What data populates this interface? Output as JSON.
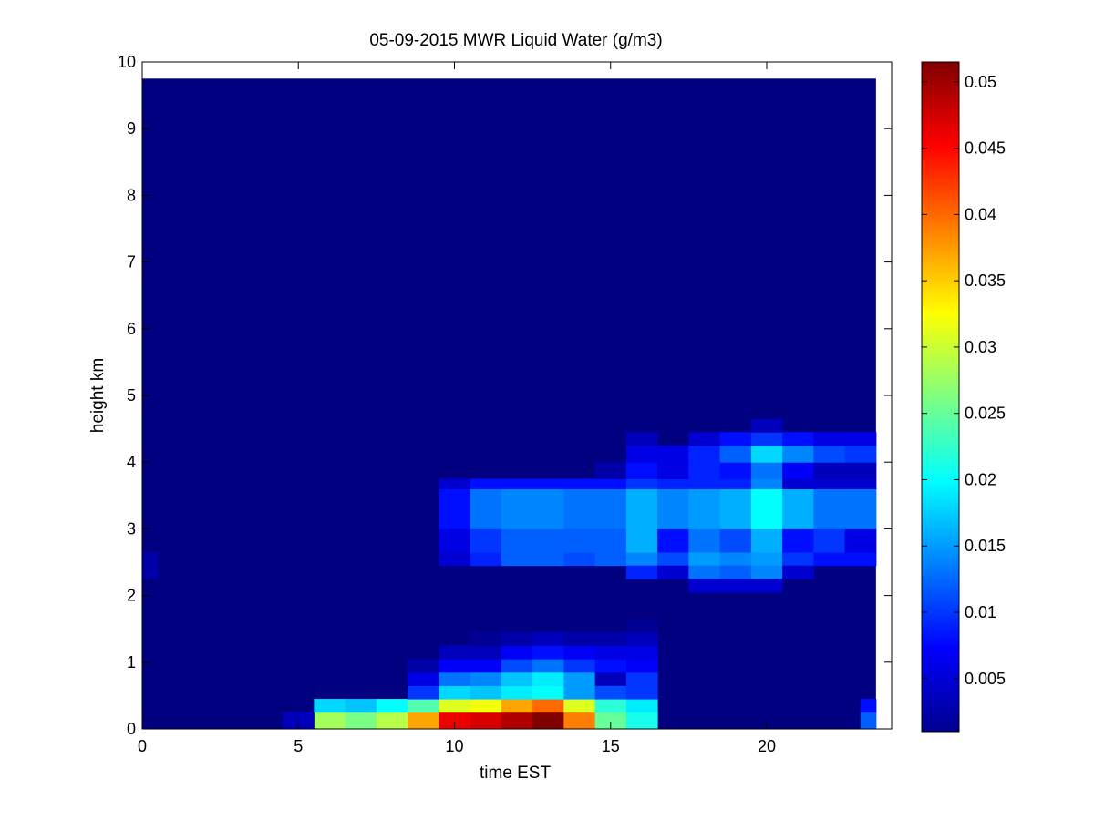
{
  "chart_data": {
    "type": "heatmap",
    "title": "05-09-2015 MWR Liquid Water (g/m3)",
    "xlabel": "time EST",
    "ylabel": "height km",
    "xlim": [
      0,
      24
    ],
    "ylim": [
      0,
      10
    ],
    "x_ticks": [
      "0",
      "5",
      "10",
      "15",
      "20"
    ],
    "y_ticks": [
      "0",
      "1",
      "2",
      "3",
      "4",
      "5",
      "6",
      "7",
      "8",
      "9",
      "10"
    ],
    "colorbar": {
      "colormap": "jet",
      "range": [
        0.001,
        0.0515
      ],
      "ticks": [
        "0.005",
        "0.01",
        "0.015",
        "0.02",
        "0.025",
        "0.03",
        "0.035",
        "0.04",
        "0.045",
        "0.05"
      ]
    },
    "background_value": 0.001,
    "data_extent": {
      "x": [
        0,
        23.5
      ],
      "y": [
        0,
        9.75
      ]
    },
    "cells": [
      {
        "x0": 5.5,
        "x1": 6.5,
        "y0": 0.0,
        "y1": 0.25,
        "v": 0.028
      },
      {
        "x0": 6.5,
        "x1": 7.5,
        "y0": 0.0,
        "y1": 0.25,
        "v": 0.026
      },
      {
        "x0": 7.5,
        "x1": 8.5,
        "y0": 0.0,
        "y1": 0.25,
        "v": 0.029
      },
      {
        "x0": 8.5,
        "x1": 9.5,
        "y0": 0.0,
        "y1": 0.25,
        "v": 0.037
      },
      {
        "x0": 9.5,
        "x1": 10.5,
        "y0": 0.0,
        "y1": 0.25,
        "v": 0.046
      },
      {
        "x0": 10.5,
        "x1": 11.5,
        "y0": 0.0,
        "y1": 0.25,
        "v": 0.047
      },
      {
        "x0": 11.5,
        "x1": 12.5,
        "y0": 0.0,
        "y1": 0.25,
        "v": 0.049
      },
      {
        "x0": 12.5,
        "x1": 13.5,
        "y0": 0.0,
        "y1": 0.25,
        "v": 0.0515
      },
      {
        "x0": 13.5,
        "x1": 14.5,
        "y0": 0.0,
        "y1": 0.25,
        "v": 0.039
      },
      {
        "x0": 14.5,
        "x1": 15.5,
        "y0": 0.0,
        "y1": 0.25,
        "v": 0.025
      },
      {
        "x0": 15.5,
        "x1": 16.5,
        "y0": 0.0,
        "y1": 0.25,
        "v": 0.021
      },
      {
        "x0": 4.5,
        "x1": 5.5,
        "y0": 0.0,
        "y1": 0.25,
        "v": 0.004
      },
      {
        "x0": 23.0,
        "x1": 23.5,
        "y0": 0.0,
        "y1": 0.25,
        "v": 0.012
      },
      {
        "x0": 5.5,
        "x1": 6.5,
        "y0": 0.25,
        "y1": 0.45,
        "v": 0.018
      },
      {
        "x0": 6.5,
        "x1": 7.5,
        "y0": 0.25,
        "y1": 0.45,
        "v": 0.017
      },
      {
        "x0": 7.5,
        "x1": 8.5,
        "y0": 0.25,
        "y1": 0.45,
        "v": 0.02
      },
      {
        "x0": 8.5,
        "x1": 9.5,
        "y0": 0.25,
        "y1": 0.45,
        "v": 0.024
      },
      {
        "x0": 9.5,
        "x1": 10.5,
        "y0": 0.25,
        "y1": 0.45,
        "v": 0.031
      },
      {
        "x0": 10.5,
        "x1": 11.5,
        "y0": 0.25,
        "y1": 0.45,
        "v": 0.032
      },
      {
        "x0": 11.5,
        "x1": 12.5,
        "y0": 0.25,
        "y1": 0.45,
        "v": 0.037
      },
      {
        "x0": 12.5,
        "x1": 13.5,
        "y0": 0.25,
        "y1": 0.45,
        "v": 0.04
      },
      {
        "x0": 13.5,
        "x1": 14.5,
        "y0": 0.25,
        "y1": 0.45,
        "v": 0.031
      },
      {
        "x0": 14.5,
        "x1": 15.5,
        "y0": 0.25,
        "y1": 0.45,
        "v": 0.022
      },
      {
        "x0": 15.5,
        "x1": 16.5,
        "y0": 0.25,
        "y1": 0.45,
        "v": 0.019
      },
      {
        "x0": 23.0,
        "x1": 23.5,
        "y0": 0.25,
        "y1": 0.45,
        "v": 0.008
      },
      {
        "x0": 8.5,
        "x1": 9.5,
        "y0": 0.45,
        "y1": 0.65,
        "v": 0.01
      },
      {
        "x0": 9.5,
        "x1": 10.5,
        "y0": 0.45,
        "y1": 0.65,
        "v": 0.018
      },
      {
        "x0": 10.5,
        "x1": 11.5,
        "y0": 0.45,
        "y1": 0.65,
        "v": 0.017
      },
      {
        "x0": 11.5,
        "x1": 12.5,
        "y0": 0.45,
        "y1": 0.65,
        "v": 0.019
      },
      {
        "x0": 12.5,
        "x1": 13.5,
        "y0": 0.45,
        "y1": 0.65,
        "v": 0.02
      },
      {
        "x0": 13.5,
        "x1": 14.5,
        "y0": 0.45,
        "y1": 0.65,
        "v": 0.015
      },
      {
        "x0": 14.5,
        "x1": 15.5,
        "y0": 0.45,
        "y1": 0.65,
        "v": 0.011
      },
      {
        "x0": 15.5,
        "x1": 16.5,
        "y0": 0.45,
        "y1": 0.65,
        "v": 0.01
      },
      {
        "x0": 8.5,
        "x1": 9.5,
        "y0": 0.65,
        "y1": 0.85,
        "v": 0.006
      },
      {
        "x0": 9.5,
        "x1": 10.5,
        "y0": 0.65,
        "y1": 0.85,
        "v": 0.013
      },
      {
        "x0": 10.5,
        "x1": 11.5,
        "y0": 0.65,
        "y1": 0.85,
        "v": 0.014
      },
      {
        "x0": 11.5,
        "x1": 12.5,
        "y0": 0.65,
        "y1": 0.85,
        "v": 0.017
      },
      {
        "x0": 12.5,
        "x1": 13.5,
        "y0": 0.65,
        "y1": 0.85,
        "v": 0.019
      },
      {
        "x0": 13.5,
        "x1": 14.5,
        "y0": 0.65,
        "y1": 0.85,
        "v": 0.015
      },
      {
        "x0": 14.5,
        "x1": 15.5,
        "y0": 0.65,
        "y1": 0.85,
        "v": 0.004
      },
      {
        "x0": 15.5,
        "x1": 16.5,
        "y0": 0.65,
        "y1": 0.85,
        "v": 0.01
      },
      {
        "x0": 8.5,
        "x1": 9.5,
        "y0": 0.85,
        "y1": 1.05,
        "v": 0.003
      },
      {
        "x0": 9.5,
        "x1": 10.5,
        "y0": 0.85,
        "y1": 1.05,
        "v": 0.007
      },
      {
        "x0": 10.5,
        "x1": 11.5,
        "y0": 0.85,
        "y1": 1.05,
        "v": 0.007
      },
      {
        "x0": 11.5,
        "x1": 12.5,
        "y0": 0.85,
        "y1": 1.05,
        "v": 0.011
      },
      {
        "x0": 12.5,
        "x1": 13.5,
        "y0": 0.85,
        "y1": 1.05,
        "v": 0.013
      },
      {
        "x0": 13.5,
        "x1": 14.5,
        "y0": 0.85,
        "y1": 1.05,
        "v": 0.01
      },
      {
        "x0": 14.5,
        "x1": 15.5,
        "y0": 0.85,
        "y1": 1.05,
        "v": 0.008
      },
      {
        "x0": 15.5,
        "x1": 16.5,
        "y0": 0.85,
        "y1": 1.05,
        "v": 0.007
      },
      {
        "x0": 9.5,
        "x1": 10.5,
        "y0": 1.05,
        "y1": 1.25,
        "v": 0.004
      },
      {
        "x0": 10.5,
        "x1": 11.5,
        "y0": 1.05,
        "y1": 1.25,
        "v": 0.004
      },
      {
        "x0": 11.5,
        "x1": 12.5,
        "y0": 1.05,
        "y1": 1.25,
        "v": 0.007
      },
      {
        "x0": 12.5,
        "x1": 13.5,
        "y0": 1.05,
        "y1": 1.25,
        "v": 0.008
      },
      {
        "x0": 13.5,
        "x1": 14.5,
        "y0": 1.05,
        "y1": 1.25,
        "v": 0.007
      },
      {
        "x0": 14.5,
        "x1": 15.5,
        "y0": 1.05,
        "y1": 1.25,
        "v": 0.006
      },
      {
        "x0": 15.5,
        "x1": 16.5,
        "y0": 1.05,
        "y1": 1.25,
        "v": 0.006
      },
      {
        "x0": 10.5,
        "x1": 11.5,
        "y0": 1.25,
        "y1": 1.45,
        "v": 0.002
      },
      {
        "x0": 11.5,
        "x1": 12.5,
        "y0": 1.25,
        "y1": 1.45,
        "v": 0.003
      },
      {
        "x0": 12.5,
        "x1": 13.5,
        "y0": 1.25,
        "y1": 1.45,
        "v": 0.004
      },
      {
        "x0": 13.5,
        "x1": 14.5,
        "y0": 1.25,
        "y1": 1.45,
        "v": 0.003
      },
      {
        "x0": 14.5,
        "x1": 15.5,
        "y0": 1.25,
        "y1": 1.45,
        "v": 0.003
      },
      {
        "x0": 15.5,
        "x1": 16.5,
        "y0": 1.25,
        "y1": 1.45,
        "v": 0.004
      },
      {
        "x0": 15.5,
        "x1": 16.5,
        "y0": 1.45,
        "y1": 1.65,
        "v": 0.002
      },
      {
        "x0": 0.0,
        "x1": 0.5,
        "y0": 2.25,
        "y1": 2.65,
        "v": 0.003
      },
      {
        "x0": 9.5,
        "x1": 10.5,
        "y0": 2.45,
        "y1": 2.65,
        "v": 0.005
      },
      {
        "x0": 10.5,
        "x1": 11.5,
        "y0": 2.45,
        "y1": 2.65,
        "v": 0.009
      },
      {
        "x0": 11.5,
        "x1": 12.5,
        "y0": 2.45,
        "y1": 2.65,
        "v": 0.012
      },
      {
        "x0": 12.5,
        "x1": 13.5,
        "y0": 2.45,
        "y1": 2.65,
        "v": 0.012
      },
      {
        "x0": 13.5,
        "x1": 14.5,
        "y0": 2.45,
        "y1": 2.65,
        "v": 0.011
      },
      {
        "x0": 14.5,
        "x1": 15.5,
        "y0": 2.45,
        "y1": 2.65,
        "v": 0.012
      },
      {
        "x0": 15.5,
        "x1": 16.5,
        "y0": 2.45,
        "y1": 2.65,
        "v": 0.014
      },
      {
        "x0": 16.5,
        "x1": 17.5,
        "y0": 2.45,
        "y1": 2.65,
        "v": 0.011
      },
      {
        "x0": 17.5,
        "x1": 18.5,
        "y0": 2.45,
        "y1": 2.65,
        "v": 0.015
      },
      {
        "x0": 18.5,
        "x1": 19.5,
        "y0": 2.45,
        "y1": 2.65,
        "v": 0.014
      },
      {
        "x0": 19.5,
        "x1": 20.5,
        "y0": 2.45,
        "y1": 2.65,
        "v": 0.015
      },
      {
        "x0": 20.5,
        "x1": 21.5,
        "y0": 2.45,
        "y1": 2.65,
        "v": 0.01
      },
      {
        "x0": 21.5,
        "x1": 22.5,
        "y0": 2.45,
        "y1": 2.65,
        "v": 0.008
      },
      {
        "x0": 22.5,
        "x1": 23.5,
        "y0": 2.45,
        "y1": 2.65,
        "v": 0.008
      },
      {
        "x0": 15.5,
        "x1": 16.5,
        "y0": 2.25,
        "y1": 2.45,
        "v": 0.009
      },
      {
        "x0": 16.5,
        "x1": 17.5,
        "y0": 2.25,
        "y1": 2.45,
        "v": 0.005
      },
      {
        "x0": 17.5,
        "x1": 18.5,
        "y0": 2.25,
        "y1": 2.45,
        "v": 0.013
      },
      {
        "x0": 18.5,
        "x1": 19.5,
        "y0": 2.25,
        "y1": 2.45,
        "v": 0.012
      },
      {
        "x0": 19.5,
        "x1": 20.5,
        "y0": 2.25,
        "y1": 2.45,
        "v": 0.014
      },
      {
        "x0": 20.5,
        "x1": 21.5,
        "y0": 2.25,
        "y1": 2.45,
        "v": 0.005
      },
      {
        "x0": 17.5,
        "x1": 20.5,
        "y0": 2.05,
        "y1": 2.25,
        "v": 0.005
      },
      {
        "x0": 9.5,
        "x1": 10.5,
        "y0": 2.65,
        "y1": 3.0,
        "v": 0.006
      },
      {
        "x0": 10.5,
        "x1": 11.5,
        "y0": 2.65,
        "y1": 3.0,
        "v": 0.01
      },
      {
        "x0": 11.5,
        "x1": 12.5,
        "y0": 2.65,
        "y1": 3.0,
        "v": 0.012
      },
      {
        "x0": 12.5,
        "x1": 13.5,
        "y0": 2.65,
        "y1": 3.0,
        "v": 0.012
      },
      {
        "x0": 13.5,
        "x1": 14.5,
        "y0": 2.65,
        "y1": 3.0,
        "v": 0.012
      },
      {
        "x0": 14.5,
        "x1": 15.5,
        "y0": 2.65,
        "y1": 3.0,
        "v": 0.012
      },
      {
        "x0": 15.5,
        "x1": 16.5,
        "y0": 2.65,
        "y1": 3.0,
        "v": 0.016
      },
      {
        "x0": 16.5,
        "x1": 17.5,
        "y0": 2.65,
        "y1": 3.0,
        "v": 0.008
      },
      {
        "x0": 17.5,
        "x1": 18.5,
        "y0": 2.65,
        "y1": 3.0,
        "v": 0.013
      },
      {
        "x0": 18.5,
        "x1": 19.5,
        "y0": 2.65,
        "y1": 3.0,
        "v": 0.011
      },
      {
        "x0": 19.5,
        "x1": 20.5,
        "y0": 2.65,
        "y1": 3.0,
        "v": 0.016
      },
      {
        "x0": 20.5,
        "x1": 21.5,
        "y0": 2.65,
        "y1": 3.0,
        "v": 0.008
      },
      {
        "x0": 21.5,
        "x1": 22.5,
        "y0": 2.65,
        "y1": 3.0,
        "v": 0.01
      },
      {
        "x0": 22.5,
        "x1": 23.5,
        "y0": 2.65,
        "y1": 3.0,
        "v": 0.006
      },
      {
        "x0": 9.5,
        "x1": 10.5,
        "y0": 3.0,
        "y1": 3.6,
        "v": 0.008
      },
      {
        "x0": 10.5,
        "x1": 11.5,
        "y0": 3.0,
        "y1": 3.6,
        "v": 0.013
      },
      {
        "x0": 11.5,
        "x1": 12.5,
        "y0": 3.0,
        "y1": 3.6,
        "v": 0.014
      },
      {
        "x0": 12.5,
        "x1": 13.5,
        "y0": 3.0,
        "y1": 3.6,
        "v": 0.014
      },
      {
        "x0": 13.5,
        "x1": 14.5,
        "y0": 3.0,
        "y1": 3.6,
        "v": 0.013
      },
      {
        "x0": 14.5,
        "x1": 15.5,
        "y0": 3.0,
        "y1": 3.6,
        "v": 0.013
      },
      {
        "x0": 15.5,
        "x1": 16.5,
        "y0": 3.0,
        "y1": 3.6,
        "v": 0.016
      },
      {
        "x0": 16.5,
        "x1": 17.5,
        "y0": 3.0,
        "y1": 3.6,
        "v": 0.014
      },
      {
        "x0": 17.5,
        "x1": 18.5,
        "y0": 3.0,
        "y1": 3.6,
        "v": 0.015
      },
      {
        "x0": 18.5,
        "x1": 19.5,
        "y0": 3.0,
        "y1": 3.6,
        "v": 0.016
      },
      {
        "x0": 19.5,
        "x1": 20.5,
        "y0": 3.0,
        "y1": 3.6,
        "v": 0.02
      },
      {
        "x0": 20.5,
        "x1": 21.5,
        "y0": 3.0,
        "y1": 3.6,
        "v": 0.016
      },
      {
        "x0": 21.5,
        "x1": 22.5,
        "y0": 3.0,
        "y1": 3.6,
        "v": 0.013
      },
      {
        "x0": 22.5,
        "x1": 23.5,
        "y0": 3.0,
        "y1": 3.6,
        "v": 0.013
      },
      {
        "x0": 9.5,
        "x1": 10.5,
        "y0": 3.6,
        "y1": 3.75,
        "v": 0.005
      },
      {
        "x0": 10.5,
        "x1": 15.5,
        "y0": 3.6,
        "y1": 3.75,
        "v": 0.008
      },
      {
        "x0": 15.5,
        "x1": 16.5,
        "y0": 3.6,
        "y1": 3.75,
        "v": 0.01
      },
      {
        "x0": 16.5,
        "x1": 19.5,
        "y0": 3.6,
        "y1": 3.75,
        "v": 0.009
      },
      {
        "x0": 19.5,
        "x1": 20.5,
        "y0": 3.6,
        "y1": 3.75,
        "v": 0.014
      },
      {
        "x0": 20.5,
        "x1": 23.5,
        "y0": 3.6,
        "y1": 3.75,
        "v": 0.005
      },
      {
        "x0": 14.5,
        "x1": 15.5,
        "y0": 3.75,
        "y1": 4.0,
        "v": 0.003
      },
      {
        "x0": 15.5,
        "x1": 16.5,
        "y0": 3.75,
        "y1": 4.0,
        "v": 0.008
      },
      {
        "x0": 16.5,
        "x1": 17.5,
        "y0": 3.75,
        "y1": 4.0,
        "v": 0.006
      },
      {
        "x0": 17.5,
        "x1": 18.5,
        "y0": 3.75,
        "y1": 4.0,
        "v": 0.009
      },
      {
        "x0": 18.5,
        "x1": 19.5,
        "y0": 3.75,
        "y1": 4.0,
        "v": 0.008
      },
      {
        "x0": 19.5,
        "x1": 20.5,
        "y0": 3.75,
        "y1": 4.0,
        "v": 0.013
      },
      {
        "x0": 20.5,
        "x1": 21.5,
        "y0": 3.75,
        "y1": 4.0,
        "v": 0.007
      },
      {
        "x0": 21.5,
        "x1": 22.5,
        "y0": 3.75,
        "y1": 4.0,
        "v": 0.004
      },
      {
        "x0": 22.5,
        "x1": 23.5,
        "y0": 3.75,
        "y1": 4.0,
        "v": 0.004
      },
      {
        "x0": 15.5,
        "x1": 16.5,
        "y0": 4.0,
        "y1": 4.25,
        "v": 0.006
      },
      {
        "x0": 16.5,
        "x1": 17.5,
        "y0": 4.0,
        "y1": 4.25,
        "v": 0.006
      },
      {
        "x0": 17.5,
        "x1": 18.5,
        "y0": 4.0,
        "y1": 4.25,
        "v": 0.009
      },
      {
        "x0": 18.5,
        "x1": 19.5,
        "y0": 4.0,
        "y1": 4.25,
        "v": 0.012
      },
      {
        "x0": 19.5,
        "x1": 20.5,
        "y0": 4.0,
        "y1": 4.25,
        "v": 0.018
      },
      {
        "x0": 20.5,
        "x1": 21.5,
        "y0": 4.0,
        "y1": 4.25,
        "v": 0.014
      },
      {
        "x0": 21.5,
        "x1": 22.5,
        "y0": 4.0,
        "y1": 4.25,
        "v": 0.011
      },
      {
        "x0": 22.5,
        "x1": 23.5,
        "y0": 4.0,
        "y1": 4.25,
        "v": 0.01
      },
      {
        "x0": 15.5,
        "x1": 16.5,
        "y0": 4.25,
        "y1": 4.45,
        "v": 0.004
      },
      {
        "x0": 17.5,
        "x1": 18.5,
        "y0": 4.25,
        "y1": 4.45,
        "v": 0.005
      },
      {
        "x0": 18.5,
        "x1": 19.5,
        "y0": 4.25,
        "y1": 4.45,
        "v": 0.008
      },
      {
        "x0": 19.5,
        "x1": 20.5,
        "y0": 4.25,
        "y1": 4.45,
        "v": 0.01
      },
      {
        "x0": 20.5,
        "x1": 21.5,
        "y0": 4.25,
        "y1": 4.45,
        "v": 0.008
      },
      {
        "x0": 21.5,
        "x1": 22.5,
        "y0": 4.25,
        "y1": 4.45,
        "v": 0.006
      },
      {
        "x0": 22.5,
        "x1": 23.5,
        "y0": 4.25,
        "y1": 4.45,
        "v": 0.006
      },
      {
        "x0": 19.5,
        "x1": 20.5,
        "y0": 4.45,
        "y1": 4.65,
        "v": 0.004
      }
    ]
  }
}
